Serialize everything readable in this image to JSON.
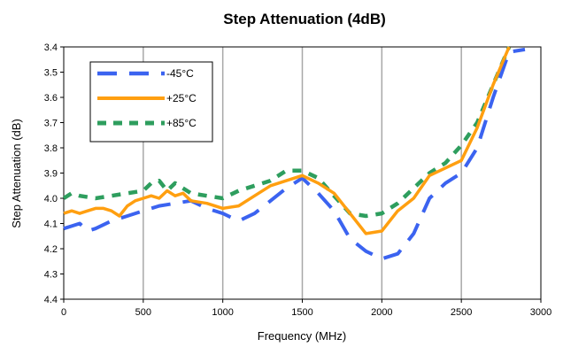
{
  "chart_data": {
    "type": "line",
    "title": "Step Attenuation (4dB)",
    "xlabel": "Frequency (MHz)",
    "ylabel": "Step Attenuation (dB)",
    "xlim": [
      0,
      3000
    ],
    "ylim": [
      3.4,
      4.4
    ],
    "y_reversed": true,
    "x_ticks": [
      0,
      500,
      1000,
      1500,
      2000,
      2500,
      3000
    ],
    "x_tick_labels": [
      "0",
      "500",
      "1000",
      "1500",
      "2000",
      "2500",
      "3000"
    ],
    "y_ticks": [
      3.4,
      3.5,
      3.6,
      3.7,
      3.8,
      3.9,
      4.0,
      4.1,
      4.2,
      4.3,
      4.4
    ],
    "y_tick_labels": [
      "3.4",
      "3.5",
      "3.6",
      "3.7",
      "3.8",
      "3.9",
      "4.0",
      "4.1",
      "4.2",
      "4.3",
      "4.4"
    ],
    "grid": {
      "vertical": true,
      "horizontal": false
    },
    "legend_placement": "top-left",
    "series": [
      {
        "name": "-45°C",
        "color": "#3b63f0",
        "dash": "long-dash",
        "x": [
          0,
          50,
          100,
          150,
          200,
          300,
          400,
          500,
          600,
          700,
          800,
          900,
          1000,
          1100,
          1200,
          1300,
          1400,
          1500,
          1600,
          1700,
          1800,
          1900,
          2000,
          2100,
          2200,
          2300,
          2400,
          2500,
          2600,
          2700,
          2800,
          2900
        ],
        "y": [
          4.12,
          4.11,
          4.1,
          4.13,
          4.12,
          4.09,
          4.07,
          4.05,
          4.03,
          4.02,
          4.01,
          4.04,
          4.06,
          4.09,
          4.06,
          4.01,
          3.96,
          3.92,
          3.98,
          4.05,
          4.16,
          4.21,
          4.24,
          4.22,
          4.14,
          4.0,
          3.94,
          3.9,
          3.8,
          3.6,
          3.42,
          3.41
        ]
      },
      {
        "name": "+25°C",
        "color": "#ff9f10",
        "dash": "solid",
        "x": [
          0,
          50,
          100,
          150,
          200,
          250,
          300,
          350,
          400,
          450,
          500,
          550,
          600,
          650,
          700,
          750,
          800,
          900,
          1000,
          1100,
          1200,
          1300,
          1400,
          1500,
          1600,
          1700,
          1800,
          1900,
          2000,
          2100,
          2200,
          2300,
          2400,
          2500,
          2600,
          2700,
          2800
        ],
        "y": [
          4.06,
          4.05,
          4.06,
          4.05,
          4.04,
          4.04,
          4.05,
          4.07,
          4.03,
          4.01,
          4.0,
          3.99,
          4.0,
          3.97,
          3.99,
          3.98,
          4.01,
          4.02,
          4.04,
          4.03,
          3.99,
          3.95,
          3.93,
          3.91,
          3.94,
          3.98,
          4.06,
          4.14,
          4.13,
          4.05,
          4.0,
          3.91,
          3.88,
          3.85,
          3.72,
          3.55,
          3.4
        ]
      },
      {
        "name": "+85°C",
        "color": "#2e9e5e",
        "dash": "dash",
        "x": [
          0,
          50,
          100,
          200,
          300,
          400,
          500,
          550,
          600,
          650,
          700,
          800,
          900,
          1000,
          1100,
          1200,
          1300,
          1400,
          1500,
          1600,
          1700,
          1800,
          1900,
          2000,
          2100,
          2200,
          2300,
          2400,
          2500,
          2600,
          2700,
          2800
        ],
        "y": [
          4.0,
          3.98,
          3.99,
          4.0,
          3.99,
          3.98,
          3.97,
          3.94,
          3.93,
          3.97,
          3.94,
          3.98,
          3.99,
          4.0,
          3.97,
          3.95,
          3.93,
          3.89,
          3.89,
          3.92,
          3.99,
          4.06,
          4.07,
          4.06,
          4.02,
          3.96,
          3.9,
          3.86,
          3.79,
          3.7,
          3.55,
          3.4
        ]
      }
    ]
  }
}
